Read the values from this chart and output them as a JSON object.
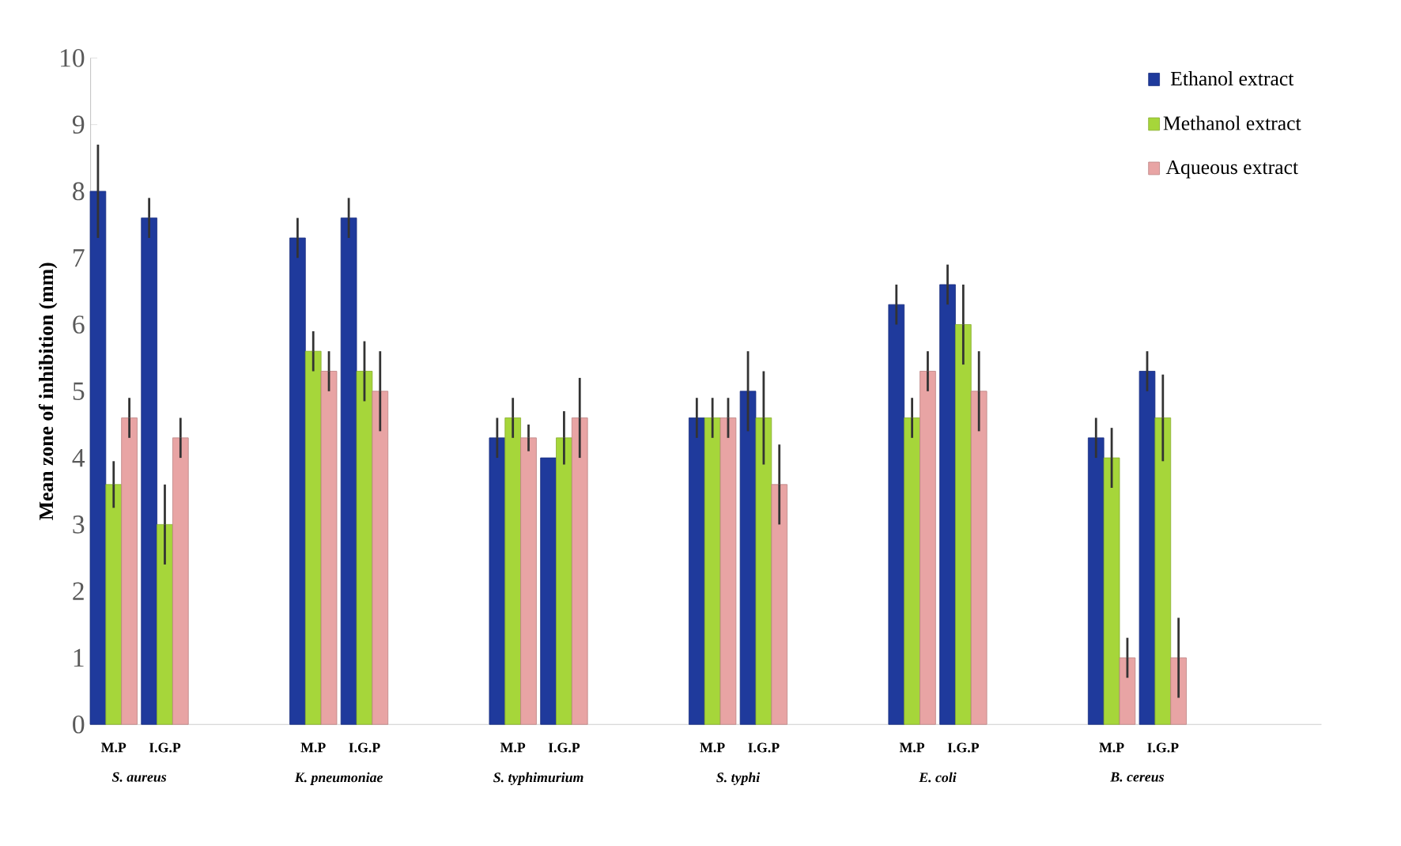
{
  "chart_data": {
    "type": "bar",
    "ylabel": "Mean zone of inhibition (mm)",
    "categories": [
      "M.P",
      "I.G.P",
      "M.P",
      "I.G.P",
      "M.P",
      "I.G.P",
      "M.P",
      "I.G.P",
      "M.P",
      "I.G.P",
      "M.P",
      "I.G.P"
    ],
    "series": [
      {
        "name": "Ethanol extract",
        "color": "#1f3a9c",
        "values": [
          8.0,
          7.6,
          7.3,
          7.6,
          4.3,
          4.0,
          4.6,
          5.0,
          6.3,
          6.6,
          4.3,
          5.3
        ],
        "errors": [
          0.7,
          0.3,
          0.3,
          0.3,
          0.3,
          null,
          0.3,
          0.6,
          0.3,
          0.3,
          0.3,
          0.3
        ]
      },
      {
        "name": "Methanol extract",
        "color": "#a6d63a",
        "values": [
          3.6,
          3.0,
          5.6,
          5.3,
          4.6,
          4.3,
          4.6,
          4.6,
          4.6,
          6.0,
          4.0,
          4.6
        ],
        "errors": [
          0.35,
          0.6,
          0.3,
          0.45,
          0.3,
          0.4,
          0.3,
          0.7,
          0.3,
          0.6,
          0.45,
          0.65
        ]
      },
      {
        "name": "Aqueous extract",
        "color": "#e8a4a4",
        "values": [
          4.6,
          4.3,
          5.3,
          5.0,
          4.3,
          4.6,
          4.6,
          3.6,
          5.3,
          5.0,
          1.0,
          1.0
        ],
        "errors": [
          0.3,
          0.3,
          0.3,
          0.6,
          0.2,
          0.6,
          0.3,
          0.6,
          0.3,
          0.6,
          0.3,
          0.6
        ]
      }
    ],
    "annotations": [
      "S. aureus",
      "K. pneumoniae",
      "S. typhimurium",
      "S. typhi",
      "E. coli",
      "B. cereus"
    ],
    "ylim": [
      0,
      10
    ],
    "yticks": [
      0,
      1,
      2,
      3,
      4,
      5,
      6,
      7,
      8,
      9,
      10
    ],
    "legend": "top right",
    "grid": false
  }
}
